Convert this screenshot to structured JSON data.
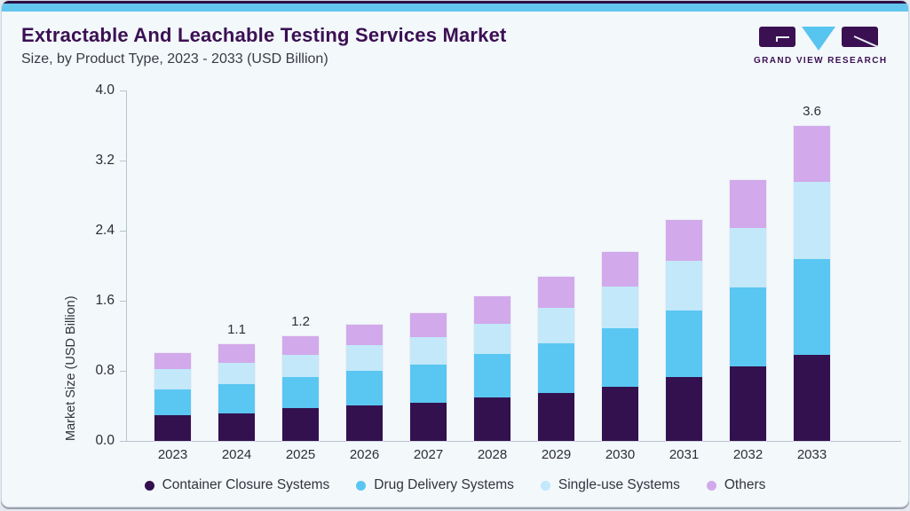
{
  "header": {
    "title": "Extractable And Leachable Testing Services Market",
    "subtitle": "Size, by Product Type, 2023 - 2033 (USD Billion)",
    "logo_text": "GRAND VIEW RESEARCH"
  },
  "accent_colors": {
    "top_hairline": "#2f1045",
    "top_strip": "#63c6ef",
    "title_purple": "#3b1053",
    "card_background": "#f3f8fb",
    "axis_gray": "#b9c3cd"
  },
  "chart_data": {
    "type": "bar",
    "stacked": true,
    "ylabel": "Market Size (USD Billion)",
    "xlabel": "",
    "ylim": [
      0,
      4.0
    ],
    "yticks": [
      0.0,
      0.8,
      1.6,
      2.4,
      3.2,
      4.0
    ],
    "grid": false,
    "legend_position": "bottom",
    "categories": [
      "2023",
      "2024",
      "2025",
      "2026",
      "2027",
      "2028",
      "2029",
      "2030",
      "2031",
      "2032",
      "2033"
    ],
    "series": [
      {
        "name": "Container Closure Systems",
        "color": "#33114e",
        "values": [
          0.29,
          0.31,
          0.37,
          0.41,
          0.44,
          0.5,
          0.55,
          0.62,
          0.73,
          0.85,
          0.98
        ]
      },
      {
        "name": "Drug Delivery Systems",
        "color": "#5ac6f2",
        "values": [
          0.3,
          0.34,
          0.36,
          0.39,
          0.43,
          0.49,
          0.56,
          0.67,
          0.76,
          0.9,
          1.1
        ]
      },
      {
        "name": "Single-use Systems",
        "color": "#c2e8fa",
        "values": [
          0.23,
          0.24,
          0.25,
          0.29,
          0.32,
          0.35,
          0.41,
          0.47,
          0.57,
          0.68,
          0.88
        ]
      },
      {
        "name": "Others",
        "color": "#d2a9ea",
        "values": [
          0.18,
          0.21,
          0.22,
          0.24,
          0.27,
          0.31,
          0.35,
          0.4,
          0.46,
          0.55,
          0.64
        ]
      }
    ],
    "totals": [
      1.0,
      1.1,
      1.2,
      1.33,
      1.46,
      1.65,
      1.87,
      2.16,
      2.52,
      2.98,
      3.6
    ],
    "bar_labels": [
      "",
      "1.1",
      "1.2",
      "",
      "",
      "",
      "",
      "",
      "",
      "",
      "3.6"
    ]
  }
}
